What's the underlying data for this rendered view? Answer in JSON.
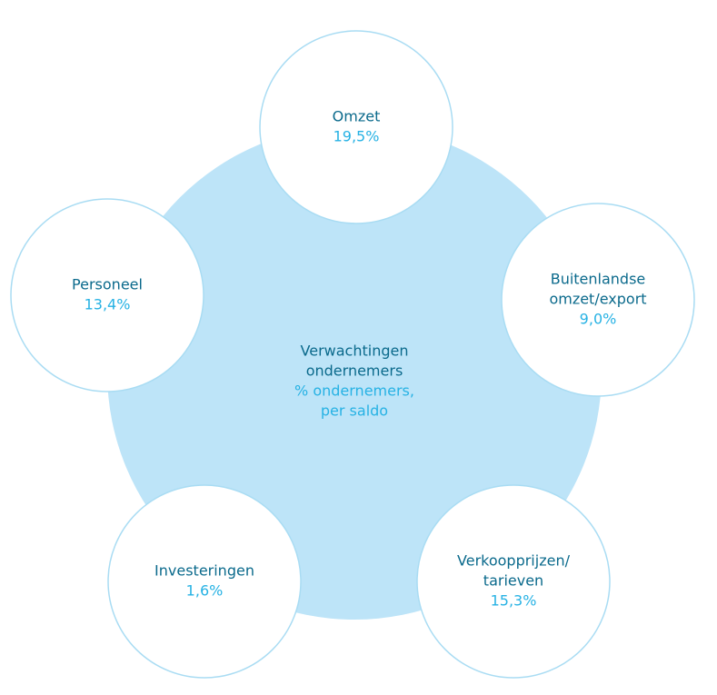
{
  "center": {
    "title_lines": [
      "Verwachtingen",
      "ondernemers"
    ],
    "subtitle_lines": [
      "% ondernemers,",
      "per saldo"
    ]
  },
  "nodes": [
    {
      "label_lines": [
        "Omzet"
      ],
      "value": "19,5%"
    },
    {
      "label_lines": [
        "Buitenlandse",
        "omzet/export"
      ],
      "value": "9,0%"
    },
    {
      "label_lines": [
        "Verkoopprijzen/",
        "tarieven"
      ],
      "value": "15,3%"
    },
    {
      "label_lines": [
        "Investeringen"
      ],
      "value": "1,6%"
    },
    {
      "label_lines": [
        "Personeel"
      ],
      "value": "13,4%"
    }
  ]
}
